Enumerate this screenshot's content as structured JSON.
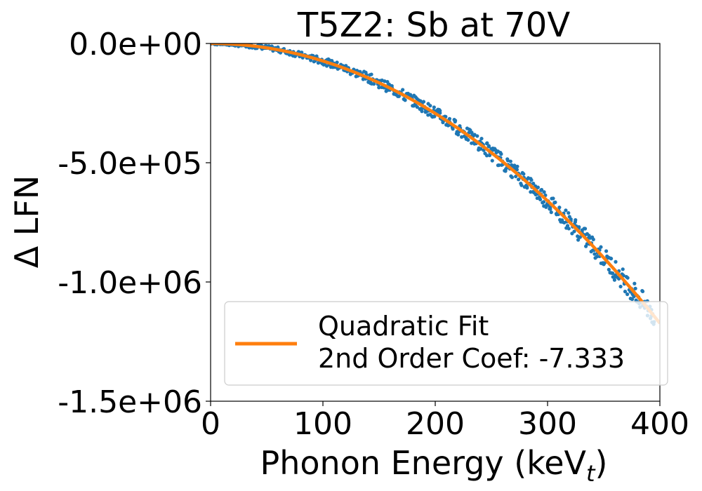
{
  "chart_data": {
    "type": "scatter",
    "title": "T5Z2: Sb at 70V",
    "xlabel": "Phonon Energy (keV",
    "xlabel_sub": "t",
    "xlabel_close": ")",
    "ylabel": "Δ LFN",
    "xlim": [
      0,
      400
    ],
    "ylim": [
      -1500000,
      0
    ],
    "x_ticks": [
      0,
      100,
      200,
      300,
      400
    ],
    "x_tick_labels": [
      "0",
      "100",
      "200",
      "300",
      "400"
    ],
    "y_ticks": [
      0,
      -500000,
      -1000000,
      -1500000
    ],
    "y_tick_labels": [
      "0.0e+00",
      "-5.0e+05",
      "-1.0e+06",
      "-1.5e+06"
    ],
    "grid": false,
    "legend_position": "lower-right",
    "series": [
      {
        "kind": "scatter",
        "color": "#1f77b4",
        "x_range": [
          0,
          395
        ],
        "points": [
          [
            0,
            0
          ],
          [
            10,
            -1000
          ],
          [
            20,
            -4000
          ],
          [
            30,
            -8000
          ],
          [
            40,
            -12000
          ],
          [
            50,
            -18000
          ],
          [
            60,
            -26000
          ],
          [
            70,
            -36000
          ],
          [
            80,
            -48000
          ],
          [
            90,
            -62000
          ],
          [
            100,
            -73000
          ],
          [
            110,
            -90000
          ],
          [
            120,
            -105000
          ],
          [
            130,
            -124000
          ],
          [
            140,
            -142000
          ],
          [
            150,
            -165000
          ],
          [
            160,
            -187000
          ],
          [
            170,
            -212000
          ],
          [
            180,
            -238000
          ],
          [
            190,
            -265000
          ],
          [
            200,
            -292000
          ],
          [
            210,
            -322000
          ],
          [
            220,
            -354000
          ],
          [
            230,
            -388000
          ],
          [
            240,
            -421000
          ],
          [
            250,
            -458000
          ],
          [
            260,
            -495000
          ],
          [
            270,
            -535000
          ],
          [
            280,
            -573000
          ],
          [
            290,
            -617000
          ],
          [
            300,
            -660000
          ],
          [
            310,
            -705000
          ],
          [
            320,
            -750000
          ],
          [
            330,
            -798000
          ],
          [
            340,
            -848000
          ],
          [
            350,
            -898000
          ],
          [
            360,
            -950000
          ],
          [
            370,
            -1003000
          ],
          [
            380,
            -1058000
          ],
          [
            390,
            -1115000
          ],
          [
            395,
            -1145000
          ]
        ],
        "spread_note": "points scatter around the fit line"
      },
      {
        "kind": "line",
        "name": "Quadratic Fit",
        "color": "#ff7f0e",
        "coef_a": -7.333,
        "x_range": [
          0,
          400
        ]
      }
    ],
    "legend": {
      "line1": "Quadratic Fit",
      "line2": "2nd Order Coef: -7.333"
    }
  }
}
